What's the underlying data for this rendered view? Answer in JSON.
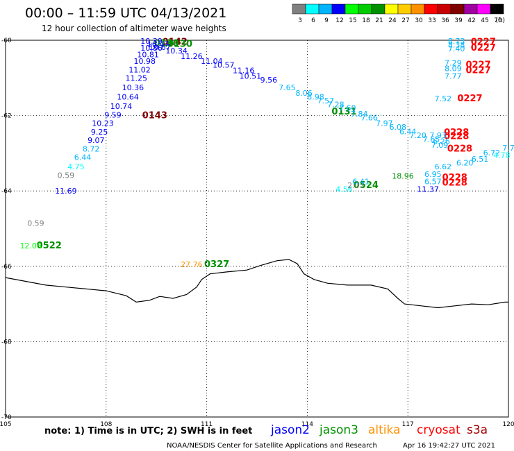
{
  "header": {
    "title": "00:00 – 11:59 UTC 04/13/2021",
    "subtitle": "12 hour collection of altimeter wave heights"
  },
  "color_scale": {
    "colors": [
      "#808080",
      "#00ffff",
      "#00b4ff",
      "#0000ff",
      "#00ff00",
      "#00cc00",
      "#009000",
      "#ffff00",
      "#ffcc00",
      "#ff9000",
      "#ff0000",
      "#c80000",
      "#800000",
      "#a000a0",
      "#ff00ff",
      "#000000"
    ],
    "labels": [
      "3",
      "6",
      "9",
      "12",
      "15",
      "18",
      "21",
      "24",
      "27",
      "30",
      "33",
      "36",
      "39",
      "42",
      "45",
      "70"
    ],
    "unit": "(ft)"
  },
  "chart_data": {
    "type": "scatter",
    "title": "00:00 – 11:59 UTC 04/13/2021",
    "subtitle": "12 hour collection of altimeter wave heights",
    "xlim": [
      105,
      120
    ],
    "ylim": [
      -70,
      -60
    ],
    "x_ticks": [
      "105",
      "108",
      "111",
      "114",
      "117",
      "120"
    ],
    "y_ticks": [
      "-60",
      "-62",
      "-64",
      "-66",
      "-68",
      "-70"
    ],
    "grid": true,
    "points": [
      {
        "x": 110.05,
        "y": -60.05,
        "value": "0142",
        "color": "#800000",
        "type": "time"
      },
      {
        "x": 109.8,
        "y": -60.08,
        "value": "0130",
        "color": "#009000",
        "type": "time"
      },
      {
        "x": 110.2,
        "y": -60.1,
        "value": "0130",
        "color": "#009000",
        "type": "time"
      },
      {
        "x": 109.45,
        "y": -62.0,
        "value": "0143",
        "color": "#800000",
        "type": "time"
      },
      {
        "x": 115.1,
        "y": -61.9,
        "value": "0131",
        "color": "#009000",
        "type": "time"
      },
      {
        "x": 119.25,
        "y": -60.05,
        "value": "0227",
        "color": "#ff0000",
        "type": "time"
      },
      {
        "x": 119.25,
        "y": -60.2,
        "value": "0227",
        "color": "#ff0000",
        "type": "time"
      },
      {
        "x": 119.1,
        "y": -60.65,
        "value": "0227",
        "color": "#ff0000",
        "type": "time"
      },
      {
        "x": 119.1,
        "y": -60.8,
        "value": "0227",
        "color": "#ff0000",
        "type": "time"
      },
      {
        "x": 118.85,
        "y": -61.55,
        "value": "0227",
        "color": "#ff0000",
        "type": "time"
      },
      {
        "x": 118.45,
        "y": -62.45,
        "value": "0228",
        "color": "#ff0000",
        "type": "time"
      },
      {
        "x": 118.45,
        "y": -62.55,
        "value": "0228",
        "color": "#ff0000",
        "type": "time"
      },
      {
        "x": 118.55,
        "y": -62.88,
        "value": "0228",
        "color": "#ff0000",
        "type": "time"
      },
      {
        "x": 118.4,
        "y": -63.65,
        "value": "0228",
        "color": "#ff0000",
        "type": "time"
      },
      {
        "x": 118.4,
        "y": -63.78,
        "value": "0228",
        "color": "#ff0000",
        "type": "time"
      },
      {
        "x": 115.75,
        "y": -63.85,
        "value": "0524",
        "color": "#009000",
        "type": "time"
      },
      {
        "x": 106.3,
        "y": -65.45,
        "value": "0522",
        "color": "#009000",
        "type": "time"
      },
      {
        "x": 111.3,
        "y": -65.95,
        "value": "0327",
        "color": "#009000",
        "type": "time"
      },
      {
        "x": 109.35,
        "y": -60.02,
        "value": "10.39",
        "color": "#0000ff",
        "type": "swh"
      },
      {
        "x": 109.55,
        "y": -60.1,
        "value": "10.47",
        "color": "#0000ff",
        "type": "swh"
      },
      {
        "x": 109.35,
        "y": -60.2,
        "value": "10.86",
        "color": "#0000ff",
        "type": "swh"
      },
      {
        "x": 109.6,
        "y": -60.18,
        "value": "10.67",
        "color": "#0000ff",
        "type": "swh"
      },
      {
        "x": 110.1,
        "y": -60.28,
        "value": "10.34",
        "color": "#0000ff",
        "type": "swh"
      },
      {
        "x": 109.25,
        "y": -60.38,
        "value": "10.81",
        "color": "#0000ff",
        "type": "swh"
      },
      {
        "x": 110.55,
        "y": -60.42,
        "value": "11.26",
        "color": "#0000ff",
        "type": "swh"
      },
      {
        "x": 109.15,
        "y": -60.55,
        "value": "10.98",
        "color": "#0000ff",
        "type": "swh"
      },
      {
        "x": 111.15,
        "y": -60.55,
        "value": "11.04",
        "color": "#0000ff",
        "type": "swh"
      },
      {
        "x": 109.0,
        "y": -60.78,
        "value": "11.02",
        "color": "#0000ff",
        "type": "swh"
      },
      {
        "x": 111.5,
        "y": -60.65,
        "value": "10.57",
        "color": "#0000ff",
        "type": "swh"
      },
      {
        "x": 108.9,
        "y": -61.0,
        "value": "11.25",
        "color": "#0000ff",
        "type": "swh"
      },
      {
        "x": 112.1,
        "y": -60.8,
        "value": "11.16",
        "color": "#0000ff",
        "type": "swh"
      },
      {
        "x": 112.3,
        "y": -60.95,
        "value": "10.51",
        "color": "#0000ff",
        "type": "swh"
      },
      {
        "x": 108.8,
        "y": -61.25,
        "value": "10.36",
        "color": "#0000ff",
        "type": "swh"
      },
      {
        "x": 112.85,
        "y": -61.05,
        "value": "9.56",
        "color": "#0000ff",
        "type": "swh"
      },
      {
        "x": 108.65,
        "y": -61.5,
        "value": "10.64",
        "color": "#0000ff",
        "type": "swh"
      },
      {
        "x": 113.4,
        "y": -61.25,
        "value": "7.65",
        "color": "#00b4ff",
        "type": "swh"
      },
      {
        "x": 108.45,
        "y": -61.75,
        "value": "10.74",
        "color": "#0000ff",
        "type": "swh"
      },
      {
        "x": 113.9,
        "y": -61.4,
        "value": "8.06",
        "color": "#00b4ff",
        "type": "swh"
      },
      {
        "x": 108.2,
        "y": -61.98,
        "value": "9.59",
        "color": "#0000ff",
        "type": "swh"
      },
      {
        "x": 114.25,
        "y": -61.5,
        "value": "8.98",
        "color": "#00b4ff",
        "type": "swh"
      },
      {
        "x": 114.55,
        "y": -61.6,
        "value": "7.57",
        "color": "#00b4ff",
        "type": "swh"
      },
      {
        "x": 107.9,
        "y": -62.2,
        "value": "10.23",
        "color": "#0000ff",
        "type": "swh"
      },
      {
        "x": 114.85,
        "y": -61.7,
        "value": "7.28",
        "color": "#00b4ff",
        "type": "swh"
      },
      {
        "x": 115.2,
        "y": -61.8,
        "value": "7.60",
        "color": "#00b4ff",
        "type": "swh"
      },
      {
        "x": 107.8,
        "y": -62.43,
        "value": "9.25",
        "color": "#0000ff",
        "type": "swh"
      },
      {
        "x": 115.55,
        "y": -61.95,
        "value": "7.84",
        "color": "#00b4ff",
        "type": "swh"
      },
      {
        "x": 107.7,
        "y": -62.65,
        "value": "9.07",
        "color": "#0000ff",
        "type": "swh"
      },
      {
        "x": 115.85,
        "y": -62.05,
        "value": "7.66",
        "color": "#00b4ff",
        "type": "swh"
      },
      {
        "x": 116.3,
        "y": -62.2,
        "value": "7.97",
        "color": "#00b4ff",
        "type": "swh"
      },
      {
        "x": 107.55,
        "y": -62.88,
        "value": "8.72",
        "color": "#00b4ff",
        "type": "swh"
      },
      {
        "x": 116.7,
        "y": -62.3,
        "value": "6.08",
        "color": "#00b4ff",
        "type": "swh"
      },
      {
        "x": 117.0,
        "y": -62.42,
        "value": "6.44",
        "color": "#00b4ff",
        "type": "swh"
      },
      {
        "x": 107.3,
        "y": -63.1,
        "value": "6.44",
        "color": "#00b4ff",
        "type": "swh"
      },
      {
        "x": 117.3,
        "y": -62.52,
        "value": "7.20",
        "color": "#00b4ff",
        "type": "swh"
      },
      {
        "x": 117.7,
        "y": -62.62,
        "value": "7.65",
        "color": "#00b4ff",
        "type": "swh"
      },
      {
        "x": 107.1,
        "y": -63.35,
        "value": "4.75",
        "color": "#00ffff",
        "type": "swh"
      },
      {
        "x": 117.9,
        "y": -62.52,
        "value": "7.93",
        "color": "#00b4ff",
        "type": "swh"
      },
      {
        "x": 106.8,
        "y": -63.58,
        "value": "0.59",
        "color": "#808080",
        "type": "swh"
      },
      {
        "x": 106.8,
        "y": -64.0,
        "value": "11.69",
        "color": "#0000ff",
        "type": "swh"
      },
      {
        "x": 105.9,
        "y": -64.85,
        "value": "0.59",
        "color": "#808080",
        "type": "swh"
      },
      {
        "x": 105.75,
        "y": -65.45,
        "value": "12.06",
        "color": "#00ff00",
        "type": "swh"
      },
      {
        "x": 110.55,
        "y": -65.95,
        "value": "27.76",
        "color": "#ff9000",
        "type": "swh"
      },
      {
        "x": 115.1,
        "y": -63.95,
        "value": "4.56",
        "color": "#00ffff",
        "type": "swh"
      },
      {
        "x": 115.45,
        "y": -63.85,
        "value": "2.07",
        "color": "#808080",
        "type": "swh"
      },
      {
        "x": 115.6,
        "y": -63.75,
        "value": "6.41",
        "color": "#00b4ff",
        "type": "swh"
      },
      {
        "x": 116.85,
        "y": -63.6,
        "value": "18.96",
        "color": "#009000",
        "type": "swh"
      },
      {
        "x": 117.6,
        "y": -63.95,
        "value": "11.37",
        "color": "#0000ff",
        "type": "swh"
      },
      {
        "x": 117.75,
        "y": -63.75,
        "value": "6.57",
        "color": "#00b4ff",
        "type": "swh"
      },
      {
        "x": 117.75,
        "y": -63.55,
        "value": "6.95",
        "color": "#00b4ff",
        "type": "swh"
      },
      {
        "x": 118.05,
        "y": -63.35,
        "value": "6.62",
        "color": "#00b4ff",
        "type": "swh"
      },
      {
        "x": 118.7,
        "y": -63.25,
        "value": "6.20",
        "color": "#00b4ff",
        "type": "swh"
      },
      {
        "x": 119.15,
        "y": -63.15,
        "value": "6.51",
        "color": "#00b4ff",
        "type": "swh"
      },
      {
        "x": 119.5,
        "y": -62.98,
        "value": "6.72",
        "color": "#00b4ff",
        "type": "swh"
      },
      {
        "x": 119.8,
        "y": -63.05,
        "value": "4.78",
        "color": "#00ffff",
        "type": "swh"
      },
      {
        "x": 120.0,
        "y": -62.85,
        "value": "7.7",
        "color": "#00b4ff",
        "type": "swh"
      },
      {
        "x": 117.95,
        "y": -62.78,
        "value": "7.09",
        "color": "#00b4ff",
        "type": "swh"
      },
      {
        "x": 118.0,
        "y": -62.68,
        "value": "6.26",
        "color": "#00b4ff",
        "type": "swh"
      },
      {
        "x": 118.05,
        "y": -61.55,
        "value": "7.52",
        "color": "#00b4ff",
        "type": "swh"
      },
      {
        "x": 118.45,
        "y": -60.02,
        "value": "8.73",
        "color": "#00b4ff",
        "type": "swh"
      },
      {
        "x": 118.45,
        "y": -60.12,
        "value": "8.38",
        "color": "#00b4ff",
        "type": "swh"
      },
      {
        "x": 118.45,
        "y": -60.22,
        "value": "7.40",
        "color": "#00b4ff",
        "type": "swh"
      },
      {
        "x": 118.35,
        "y": -60.6,
        "value": "7.29",
        "color": "#00b4ff",
        "type": "swh"
      },
      {
        "x": 118.35,
        "y": -60.75,
        "value": "8.09",
        "color": "#00b4ff",
        "type": "swh"
      },
      {
        "x": 118.35,
        "y": -60.95,
        "value": "7.77",
        "color": "#00b4ff",
        "type": "swh"
      }
    ],
    "coastline": [
      [
        105.0,
        -66.3
      ],
      [
        105.6,
        -66.4
      ],
      [
        106.2,
        -66.5
      ],
      [
        106.8,
        -66.55
      ],
      [
        107.4,
        -66.6
      ],
      [
        108.0,
        -66.65
      ],
      [
        108.6,
        -66.78
      ],
      [
        108.9,
        -66.95
      ],
      [
        109.3,
        -66.9
      ],
      [
        109.6,
        -66.8
      ],
      [
        110.0,
        -66.85
      ],
      [
        110.4,
        -66.75
      ],
      [
        110.7,
        -66.55
      ],
      [
        110.85,
        -66.35
      ],
      [
        111.1,
        -66.2
      ],
      [
        111.6,
        -66.15
      ],
      [
        112.2,
        -66.1
      ],
      [
        112.6,
        -65.98
      ],
      [
        113.1,
        -65.85
      ],
      [
        113.45,
        -65.82
      ],
      [
        113.7,
        -65.93
      ],
      [
        113.9,
        -66.2
      ],
      [
        114.2,
        -66.35
      ],
      [
        114.6,
        -66.45
      ],
      [
        115.2,
        -66.5
      ],
      [
        115.9,
        -66.5
      ],
      [
        116.4,
        -66.6
      ],
      [
        116.7,
        -66.85
      ],
      [
        116.9,
        -67.0
      ],
      [
        117.4,
        -67.05
      ],
      [
        117.9,
        -67.1
      ],
      [
        118.4,
        -67.05
      ],
      [
        118.9,
        -67.0
      ],
      [
        119.4,
        -67.02
      ],
      [
        119.9,
        -66.95
      ],
      [
        120.0,
        -66.95
      ]
    ]
  },
  "footer": {
    "note": "note:  1) Time is in UTC;  2) SWH is in feet",
    "legend": [
      {
        "name": "jason2",
        "color": "#0000ff"
      },
      {
        "name": "jason3",
        "color": "#009000"
      },
      {
        "name": "altika",
        "color": "#ff9000"
      },
      {
        "name": "cryosat",
        "color": "#ff0000"
      },
      {
        "name": "s3a",
        "color": "#a00000"
      }
    ],
    "credit": "NOAA/NESDIS Center for Satellite Applications and Research",
    "timestamp": "Apr 16 19:42:27 UTC 2021"
  }
}
